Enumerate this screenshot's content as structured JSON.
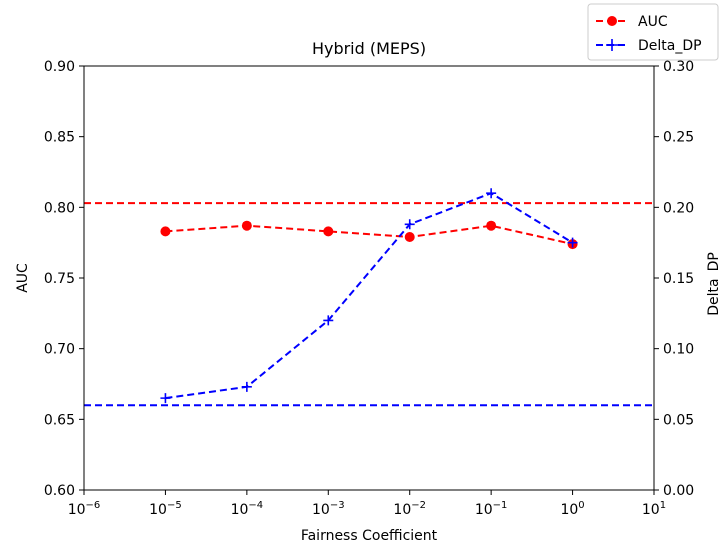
{
  "chart_data": {
    "type": "line",
    "title": "Hybrid (MEPS)",
    "xlabel": "Fairness Coefficient",
    "ylabel_left": "AUC",
    "ylabel_right": "Delta_DP",
    "xscale": "log",
    "xlim_exp": [
      -6,
      1
    ],
    "x_tick_labels": [
      {
        "base": "10",
        "exp": "−6"
      },
      {
        "base": "10",
        "exp": "−5"
      },
      {
        "base": "10",
        "exp": "−4"
      },
      {
        "base": "10",
        "exp": "−3"
      },
      {
        "base": "10",
        "exp": "−2"
      },
      {
        "base": "10",
        "exp": "−1"
      },
      {
        "base": "10",
        "exp": "0"
      },
      {
        "base": "10",
        "exp": "1"
      }
    ],
    "ylim_left": [
      0.6,
      0.9
    ],
    "y_left_ticks": [
      "0.60",
      "0.65",
      "0.70",
      "0.75",
      "0.80",
      "0.85",
      "0.90"
    ],
    "ylim_right": [
      0.0,
      0.3
    ],
    "y_right_ticks": [
      "0.00",
      "0.05",
      "0.10",
      "0.15",
      "0.20",
      "0.25",
      "0.30"
    ],
    "x": [
      1e-05,
      0.0001,
      0.001,
      0.01,
      0.1,
      1
    ],
    "series": [
      {
        "name": "AUC",
        "axis": "left",
        "color": "#ff0000",
        "marker": "circle",
        "values": [
          0.783,
          0.787,
          0.783,
          0.779,
          0.787,
          0.774
        ],
        "baseline": 0.803
      },
      {
        "name": "Delta_DP",
        "axis": "right",
        "color": "#0000ff",
        "marker": "plus",
        "values": [
          0.065,
          0.073,
          0.12,
          0.188,
          0.21,
          0.175
        ],
        "baseline": 0.06
      }
    ],
    "legend_position": "top-right",
    "grid": false
  }
}
